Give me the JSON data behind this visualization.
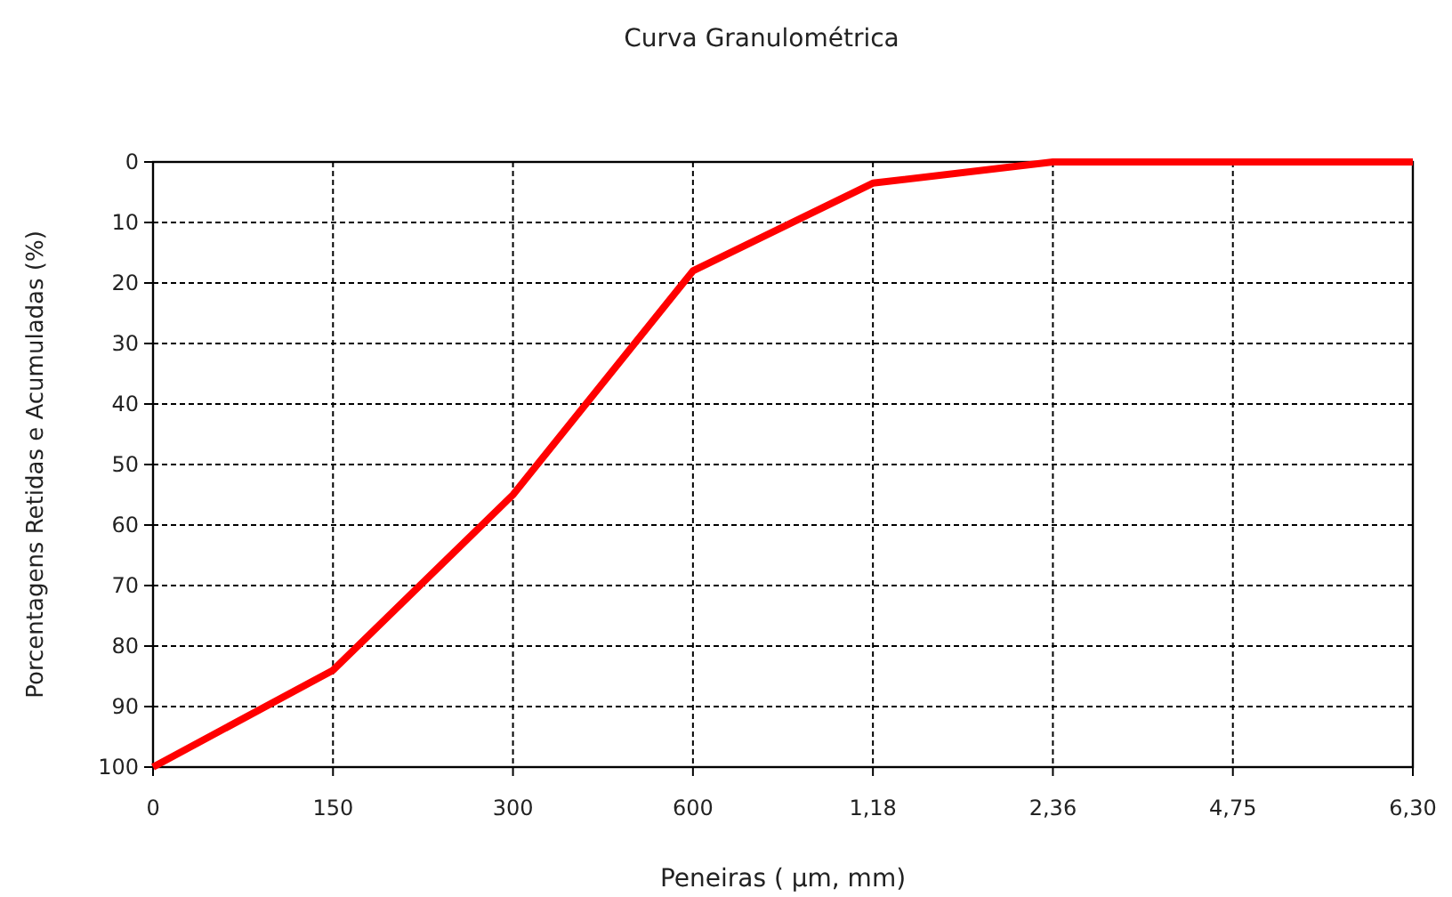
{
  "chart_data": {
    "type": "line",
    "title": "Curva Granulométrica",
    "xlabel": "Peneiras ( µm, mm)",
    "ylabel": "Porcentagens Retidas e Acumuladas (%)",
    "categories": [
      "0",
      "150",
      "300",
      "600",
      "1,18",
      "2,36",
      "4,75",
      "6,30"
    ],
    "series": [
      {
        "color": "#ff0000",
        "values": [
          100,
          84,
          55,
          18,
          3.5,
          0,
          0,
          0
        ]
      }
    ],
    "ylim": [
      100,
      0
    ],
    "yticks": [
      0,
      10,
      20,
      30,
      40,
      50,
      60,
      70,
      80,
      90,
      100
    ],
    "grid": true,
    "marker": "none",
    "line_style": "solid"
  }
}
